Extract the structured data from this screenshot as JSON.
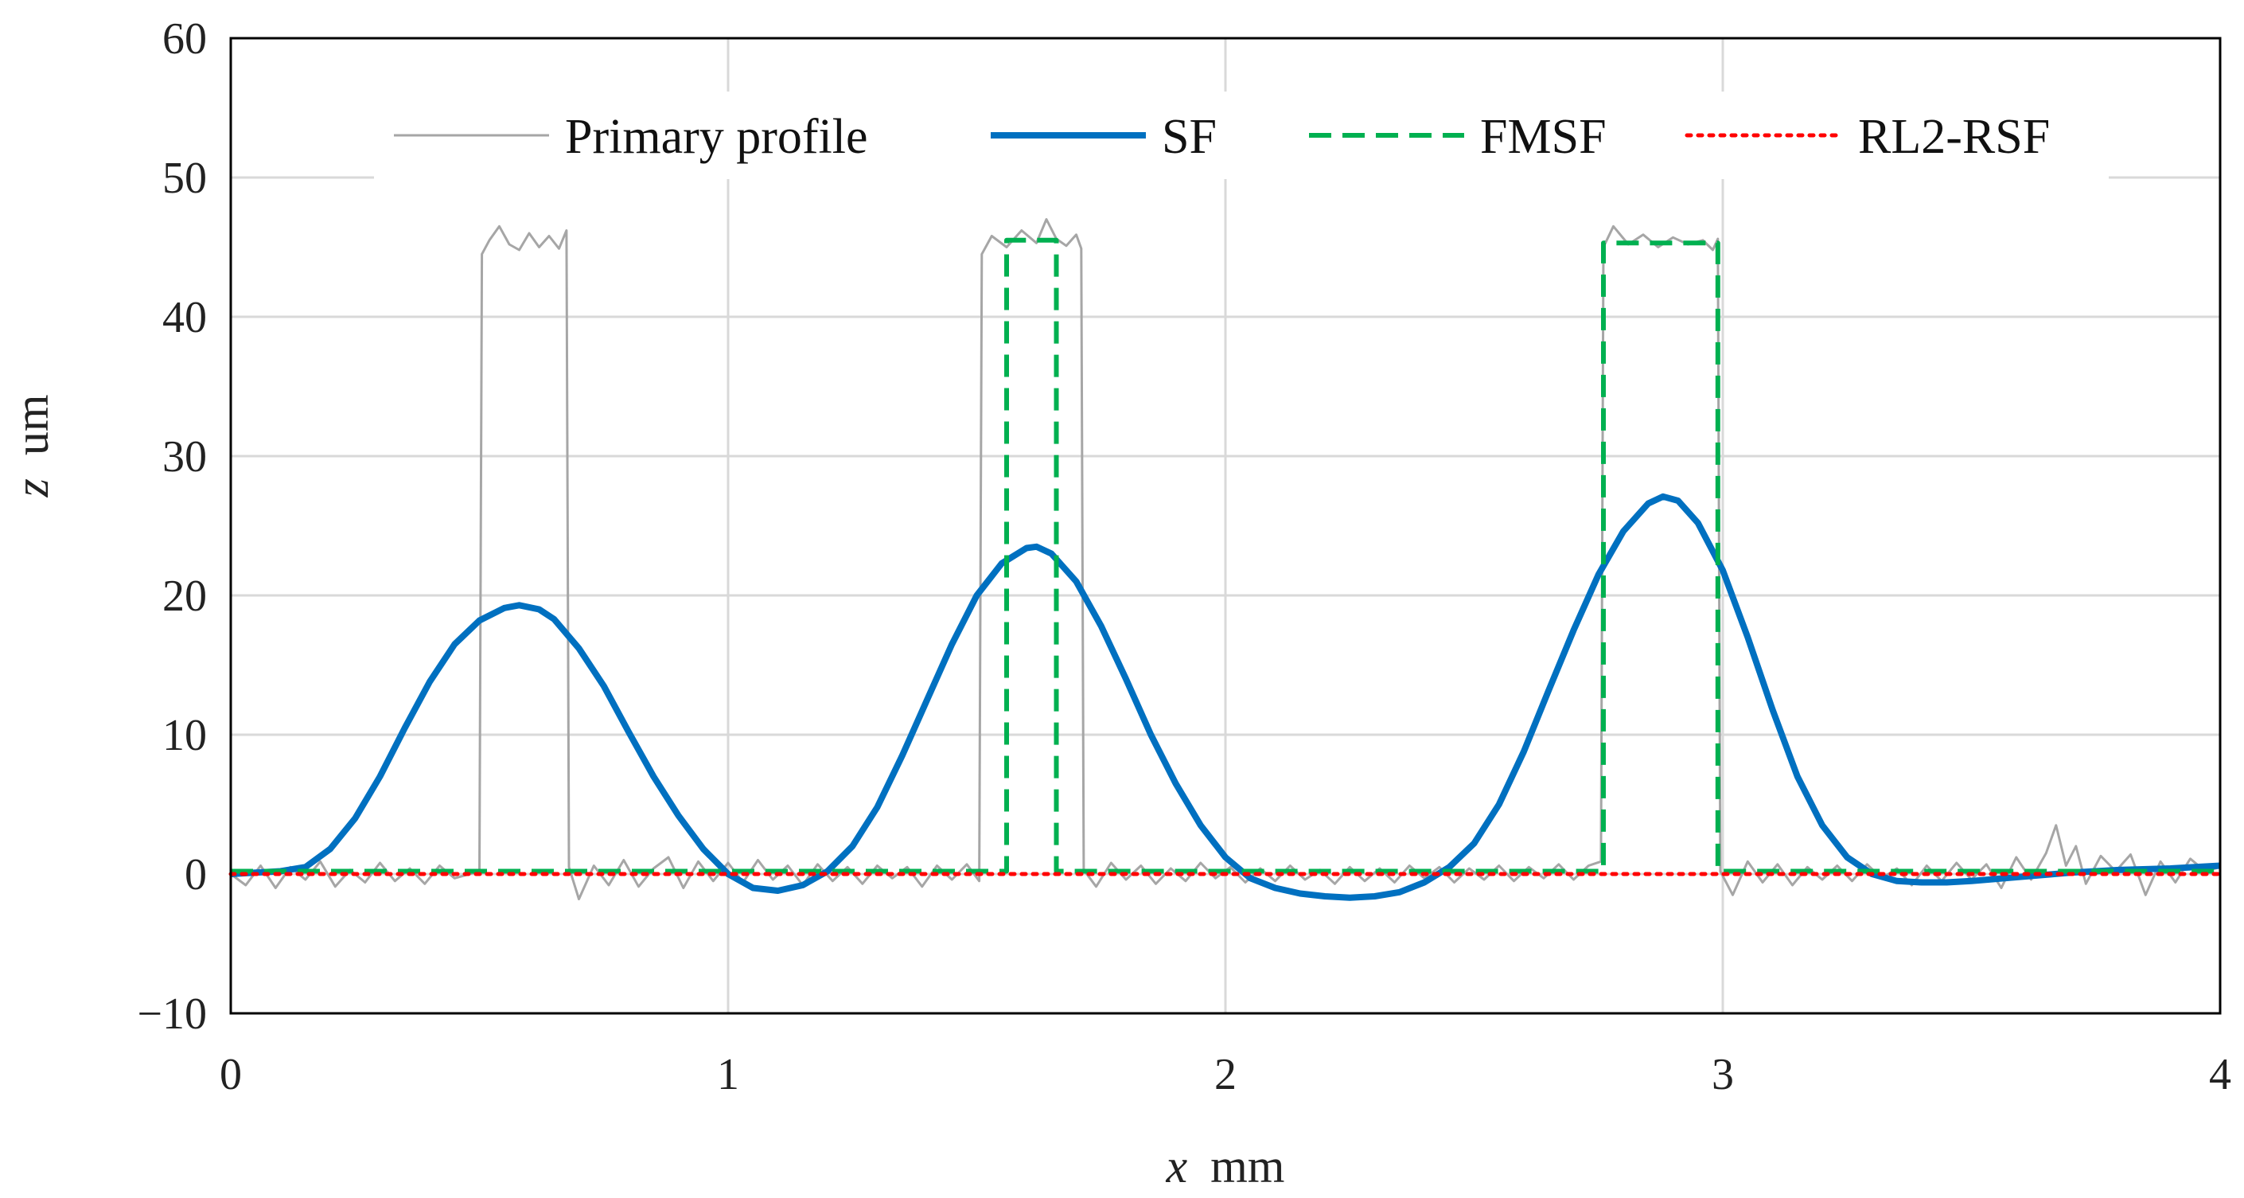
{
  "chart_data": {
    "type": "line",
    "title": "",
    "xlabel": {
      "var": "x",
      "unit": "mm"
    },
    "ylabel": {
      "var": "z",
      "unit": "um"
    },
    "xlim": [
      0,
      4
    ],
    "ylim": [
      -10,
      60
    ],
    "xticks": [
      0,
      1,
      2,
      3,
      4
    ],
    "yticks": [
      -10,
      0,
      10,
      20,
      30,
      40,
      50,
      60
    ],
    "ytick_labels": [
      "−10",
      "0",
      "10",
      "20",
      "30",
      "40",
      "50",
      "60"
    ],
    "grid": true,
    "legend_position": "top",
    "series": [
      {
        "name": "Primary profile",
        "color": "#a6a6a6",
        "dash": "solid",
        "points": [
          [
            0.0,
            0.0
          ],
          [
            0.03,
            -0.8
          ],
          [
            0.06,
            0.6
          ],
          [
            0.09,
            -1.0
          ],
          [
            0.12,
            0.5
          ],
          [
            0.15,
            -0.4
          ],
          [
            0.18,
            0.9
          ],
          [
            0.21,
            -0.9
          ],
          [
            0.24,
            0.3
          ],
          [
            0.27,
            -0.6
          ],
          [
            0.3,
            0.8
          ],
          [
            0.33,
            -0.5
          ],
          [
            0.36,
            0.4
          ],
          [
            0.39,
            -0.7
          ],
          [
            0.42,
            0.6
          ],
          [
            0.45,
            -0.3
          ],
          [
            0.5,
            0.2
          ],
          [
            0.505,
            44.5
          ],
          [
            0.52,
            45.5
          ],
          [
            0.54,
            46.5
          ],
          [
            0.56,
            45.2
          ],
          [
            0.58,
            44.8
          ],
          [
            0.6,
            46.0
          ],
          [
            0.62,
            45.0
          ],
          [
            0.64,
            45.8
          ],
          [
            0.66,
            44.9
          ],
          [
            0.675,
            46.2
          ],
          [
            0.68,
            0.5
          ],
          [
            0.7,
            -1.8
          ],
          [
            0.73,
            0.6
          ],
          [
            0.76,
            -0.8
          ],
          [
            0.79,
            1.0
          ],
          [
            0.82,
            -0.9
          ],
          [
            0.85,
            0.4
          ],
          [
            0.88,
            1.2
          ],
          [
            0.91,
            -1.0
          ],
          [
            0.94,
            0.9
          ],
          [
            0.97,
            -0.5
          ],
          [
            1.0,
            0.8
          ],
          [
            1.03,
            -0.6
          ],
          [
            1.06,
            1.0
          ],
          [
            1.09,
            -0.4
          ],
          [
            1.12,
            0.6
          ],
          [
            1.15,
            -0.8
          ],
          [
            1.18,
            0.7
          ],
          [
            1.21,
            -0.5
          ],
          [
            1.24,
            0.5
          ],
          [
            1.27,
            -0.7
          ],
          [
            1.3,
            0.6
          ],
          [
            1.33,
            -0.3
          ],
          [
            1.36,
            0.5
          ],
          [
            1.39,
            -0.9
          ],
          [
            1.42,
            0.6
          ],
          [
            1.45,
            -0.4
          ],
          [
            1.48,
            0.7
          ],
          [
            1.505,
            -0.5
          ],
          [
            1.51,
            44.5
          ],
          [
            1.53,
            45.8
          ],
          [
            1.56,
            45.0
          ],
          [
            1.59,
            46.2
          ],
          [
            1.62,
            45.3
          ],
          [
            1.64,
            47.0
          ],
          [
            1.66,
            45.6
          ],
          [
            1.68,
            45.1
          ],
          [
            1.7,
            45.9
          ],
          [
            1.71,
            44.9
          ],
          [
            1.715,
            0.3
          ],
          [
            1.74,
            -0.9
          ],
          [
            1.77,
            0.8
          ],
          [
            1.8,
            -0.4
          ],
          [
            1.83,
            0.6
          ],
          [
            1.86,
            -0.7
          ],
          [
            1.89,
            0.4
          ],
          [
            1.92,
            -0.5
          ],
          [
            1.95,
            0.8
          ],
          [
            1.98,
            -0.3
          ],
          [
            2.01,
            0.5
          ],
          [
            2.04,
            -0.6
          ],
          [
            2.07,
            0.4
          ],
          [
            2.1,
            -0.5
          ],
          [
            2.13,
            0.6
          ],
          [
            2.16,
            -0.4
          ],
          [
            2.19,
            0.3
          ],
          [
            2.22,
            -0.7
          ],
          [
            2.25,
            0.5
          ],
          [
            2.28,
            -0.5
          ],
          [
            2.31,
            0.4
          ],
          [
            2.34,
            -0.6
          ],
          [
            2.37,
            0.6
          ],
          [
            2.4,
            -0.3
          ],
          [
            2.43,
            0.5
          ],
          [
            2.46,
            -0.6
          ],
          [
            2.49,
            0.4
          ],
          [
            2.52,
            -0.4
          ],
          [
            2.55,
            0.6
          ],
          [
            2.58,
            -0.5
          ],
          [
            2.61,
            0.5
          ],
          [
            2.64,
            -0.3
          ],
          [
            2.67,
            0.7
          ],
          [
            2.7,
            -0.4
          ],
          [
            2.73,
            0.6
          ],
          [
            2.755,
            0.9
          ],
          [
            2.76,
            45.0
          ],
          [
            2.78,
            46.5
          ],
          [
            2.81,
            45.2
          ],
          [
            2.84,
            45.9
          ],
          [
            2.87,
            45.0
          ],
          [
            2.9,
            45.7
          ],
          [
            2.93,
            45.2
          ],
          [
            2.96,
            45.5
          ],
          [
            2.98,
            44.8
          ],
          [
            2.99,
            45.6
          ],
          [
            2.995,
            0.2
          ],
          [
            3.02,
            -1.5
          ],
          [
            3.05,
            0.9
          ],
          [
            3.08,
            -0.6
          ],
          [
            3.11,
            0.7
          ],
          [
            3.14,
            -0.8
          ],
          [
            3.17,
            0.5
          ],
          [
            3.2,
            -0.4
          ],
          [
            3.23,
            0.6
          ],
          [
            3.26,
            -0.5
          ],
          [
            3.29,
            0.7
          ],
          [
            3.32,
            -0.3
          ],
          [
            3.35,
            0.4
          ],
          [
            3.38,
            -0.8
          ],
          [
            3.41,
            0.6
          ],
          [
            3.44,
            -0.5
          ],
          [
            3.47,
            0.8
          ],
          [
            3.5,
            -0.4
          ],
          [
            3.53,
            0.7
          ],
          [
            3.56,
            -1.0
          ],
          [
            3.59,
            1.2
          ],
          [
            3.62,
            -0.4
          ],
          [
            3.65,
            1.5
          ],
          [
            3.67,
            3.5
          ],
          [
            3.69,
            0.6
          ],
          [
            3.71,
            2.0
          ],
          [
            3.73,
            -0.7
          ],
          [
            3.76,
            1.3
          ],
          [
            3.79,
            0.2
          ],
          [
            3.82,
            1.4
          ],
          [
            3.85,
            -1.5
          ],
          [
            3.88,
            0.9
          ],
          [
            3.91,
            -0.6
          ],
          [
            3.94,
            1.1
          ],
          [
            3.97,
            0.2
          ],
          [
            4.0,
            0.5
          ]
        ]
      },
      {
        "name": "SF",
        "color": "#0070c0",
        "dash": "solid",
        "points": [
          [
            0.0,
            0.0
          ],
          [
            0.05,
            0.1
          ],
          [
            0.1,
            0.2
          ],
          [
            0.15,
            0.5
          ],
          [
            0.2,
            1.8
          ],
          [
            0.25,
            4.0
          ],
          [
            0.3,
            7.0
          ],
          [
            0.35,
            10.5
          ],
          [
            0.4,
            13.8
          ],
          [
            0.45,
            16.5
          ],
          [
            0.5,
            18.2
          ],
          [
            0.55,
            19.1
          ],
          [
            0.58,
            19.3
          ],
          [
            0.62,
            19.0
          ],
          [
            0.65,
            18.3
          ],
          [
            0.7,
            16.2
          ],
          [
            0.75,
            13.5
          ],
          [
            0.8,
            10.2
          ],
          [
            0.85,
            7.0
          ],
          [
            0.9,
            4.2
          ],
          [
            0.95,
            1.8
          ],
          [
            1.0,
            0.0
          ],
          [
            1.05,
            -1.0
          ],
          [
            1.1,
            -1.2
          ],
          [
            1.15,
            -0.8
          ],
          [
            1.2,
            0.2
          ],
          [
            1.25,
            2.0
          ],
          [
            1.3,
            4.8
          ],
          [
            1.35,
            8.5
          ],
          [
            1.4,
            12.5
          ],
          [
            1.45,
            16.5
          ],
          [
            1.5,
            20.0
          ],
          [
            1.55,
            22.3
          ],
          [
            1.6,
            23.4
          ],
          [
            1.62,
            23.5
          ],
          [
            1.65,
            23.0
          ],
          [
            1.7,
            21.0
          ],
          [
            1.75,
            17.8
          ],
          [
            1.8,
            14.0
          ],
          [
            1.85,
            10.0
          ],
          [
            1.9,
            6.5
          ],
          [
            1.95,
            3.5
          ],
          [
            2.0,
            1.2
          ],
          [
            2.05,
            -0.3
          ],
          [
            2.1,
            -1.0
          ],
          [
            2.15,
            -1.4
          ],
          [
            2.2,
            -1.6
          ],
          [
            2.25,
            -1.7
          ],
          [
            2.3,
            -1.6
          ],
          [
            2.35,
            -1.3
          ],
          [
            2.4,
            -0.6
          ],
          [
            2.45,
            0.5
          ],
          [
            2.5,
            2.2
          ],
          [
            2.55,
            5.0
          ],
          [
            2.6,
            8.8
          ],
          [
            2.65,
            13.2
          ],
          [
            2.7,
            17.5
          ],
          [
            2.75,
            21.5
          ],
          [
            2.8,
            24.6
          ],
          [
            2.85,
            26.6
          ],
          [
            2.88,
            27.1
          ],
          [
            2.91,
            26.8
          ],
          [
            2.95,
            25.2
          ],
          [
            3.0,
            21.8
          ],
          [
            3.05,
            17.0
          ],
          [
            3.1,
            11.8
          ],
          [
            3.15,
            7.0
          ],
          [
            3.2,
            3.5
          ],
          [
            3.25,
            1.2
          ],
          [
            3.3,
            0.0
          ],
          [
            3.35,
            -0.5
          ],
          [
            3.4,
            -0.6
          ],
          [
            3.45,
            -0.6
          ],
          [
            3.5,
            -0.5
          ],
          [
            3.6,
            -0.2
          ],
          [
            3.7,
            0.1
          ],
          [
            3.8,
            0.3
          ],
          [
            3.9,
            0.4
          ],
          [
            4.0,
            0.6
          ]
        ]
      },
      {
        "name": "FMSF",
        "color": "#00b050",
        "dash": "dashed",
        "points": [
          [
            0.0,
            0.2
          ],
          [
            1.56,
            0.2
          ],
          [
            1.56,
            45.5
          ],
          [
            1.66,
            45.5
          ],
          [
            1.66,
            0.2
          ],
          [
            2.76,
            0.2
          ],
          [
            2.76,
            45.3
          ],
          [
            2.99,
            45.3
          ],
          [
            2.99,
            0.2
          ],
          [
            4.0,
            0.2
          ]
        ]
      },
      {
        "name": "RL2-RSF",
        "color": "#ff0000",
        "dash": "dotted",
        "points": [
          [
            0.0,
            0.0
          ],
          [
            4.0,
            0.0
          ]
        ]
      }
    ]
  }
}
